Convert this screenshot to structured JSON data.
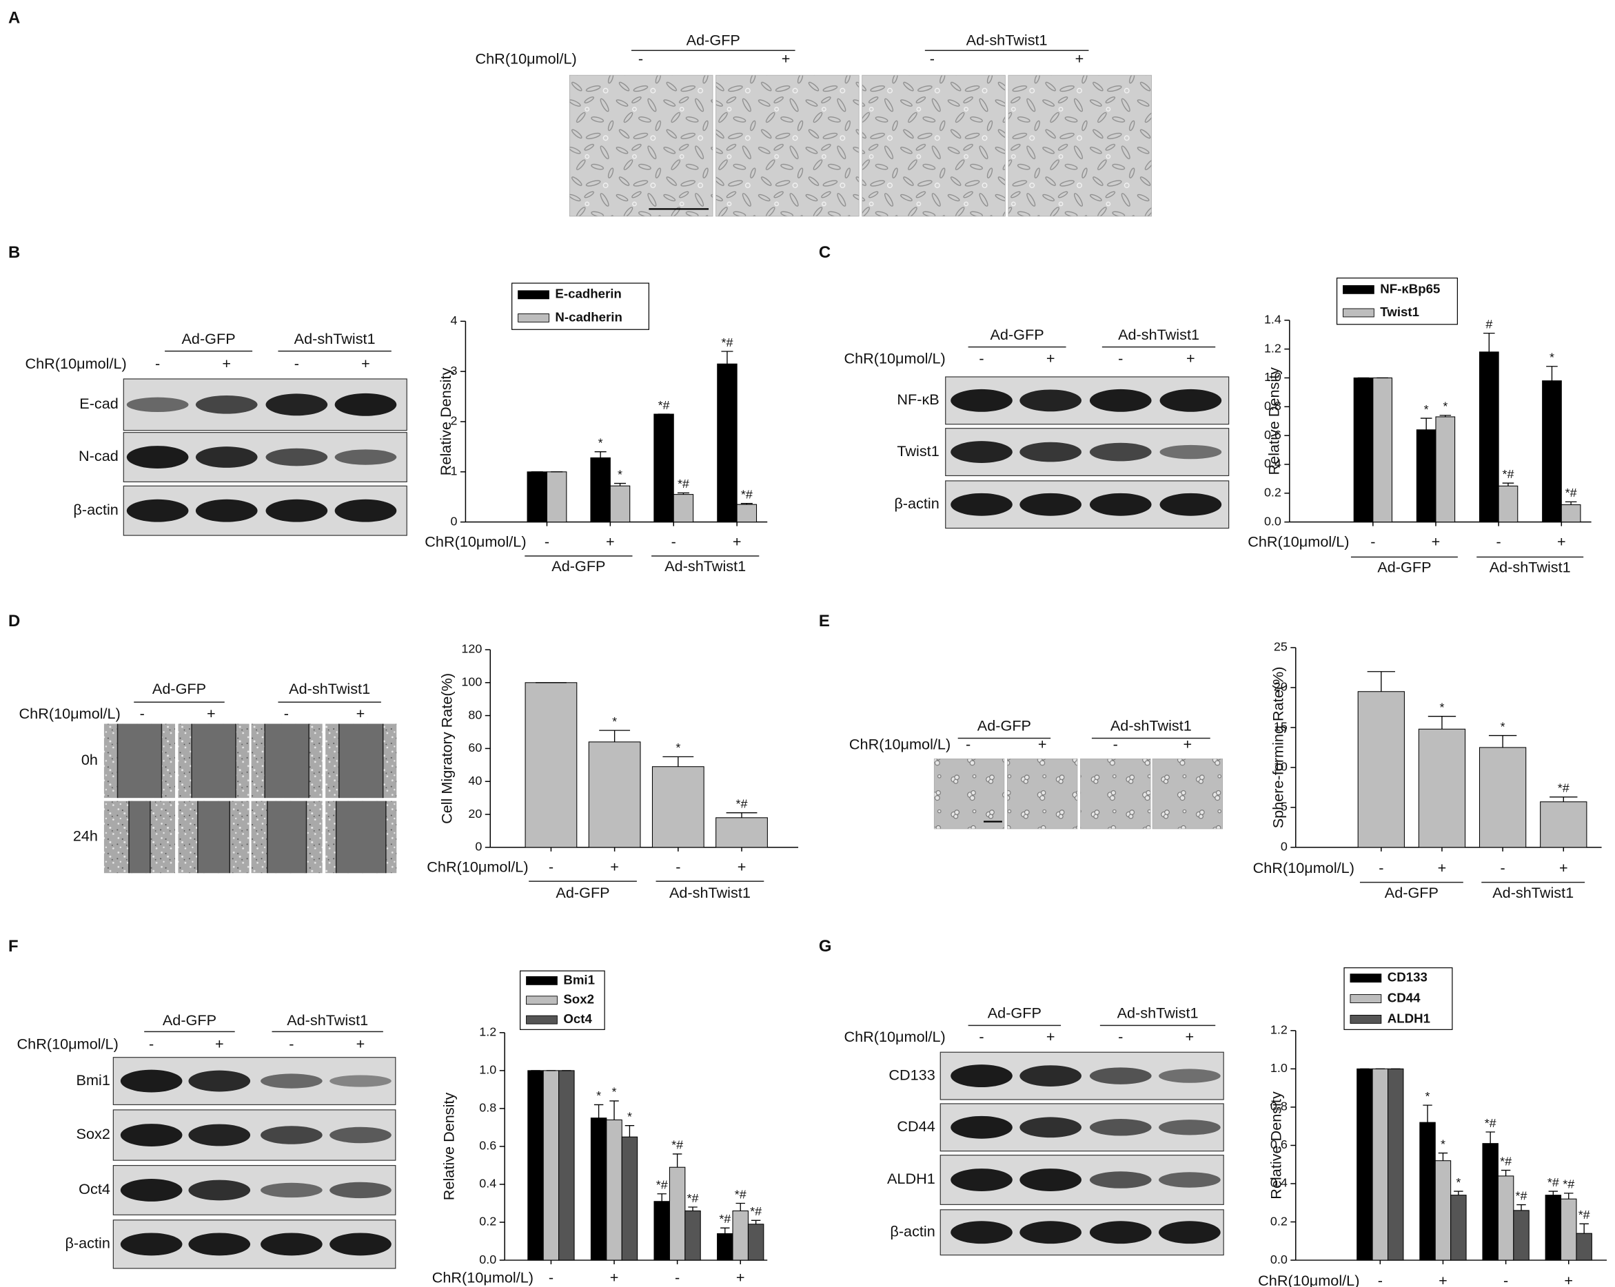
{
  "panels": [
    {
      "label": "A",
      "micrograph": {
        "groups": [
          "Ad-GFP",
          "Ad-shTwist1"
        ],
        "treatment": "ChR(10μmol/L)",
        "signs": [
          "-",
          "+",
          "-",
          "+"
        ]
      }
    },
    {
      "label": "B",
      "blot": {
        "groups": [
          "Ad-GFP",
          "Ad-shTwist1"
        ],
        "treatment": "ChR(10μmol/L)",
        "signs": [
          "-",
          "+",
          "-",
          "+"
        ],
        "rows": [
          "E-cad",
          "N-cad",
          "β-actin"
        ]
      }
    },
    {
      "label": "C",
      "blot": {
        "groups": [
          "Ad-GFP",
          "Ad-shTwist1"
        ],
        "treatment": "ChR(10μmol/L)",
        "signs": [
          "-",
          "+",
          "-",
          "+"
        ],
        "rows": [
          "NF-κB",
          "Twist1",
          "β-actin"
        ]
      }
    },
    {
      "label": "D",
      "scratch": {
        "groups": [
          "Ad-GFP",
          "Ad-shTwist1"
        ],
        "treatment": "ChR(10μmol/L)",
        "signs": [
          "-",
          "+",
          "-",
          "+"
        ],
        "rows": [
          "0h",
          "24h"
        ]
      }
    },
    {
      "label": "E",
      "micrograph": {
        "groups": [
          "Ad-GFP",
          "Ad-shTwist1"
        ],
        "treatment": "ChR(10μmol/L)",
        "signs": [
          "-",
          "+",
          "-",
          "+"
        ]
      }
    },
    {
      "label": "F",
      "blot": {
        "groups": [
          "Ad-GFP",
          "Ad-shTwist1"
        ],
        "treatment": "ChR(10μmol/L)",
        "signs": [
          "-",
          "+",
          "-",
          "+"
        ],
        "rows": [
          "Bmi1",
          "Sox2",
          "Oct4",
          "β-actin"
        ]
      }
    },
    {
      "label": "G",
      "blot": {
        "groups": [
          "Ad-GFP",
          "Ad-shTwist1"
        ],
        "treatment": "ChR(10μmol/L)",
        "signs": [
          "-",
          "+",
          "-",
          "+"
        ],
        "rows": [
          "CD133",
          "CD44",
          "ALDH1",
          "β-actin"
        ]
      }
    }
  ],
  "chart_data": [
    {
      "type": "bar",
      "ylabel": "Relative Density",
      "xlabel": "ChR(10μmol/L)",
      "categories": [
        "-",
        "+",
        "-",
        "+"
      ],
      "groups": [
        "Ad-GFP",
        "Ad-shTwist1"
      ],
      "ylim": [
        0,
        4
      ],
      "yticks": [
        0,
        1,
        2,
        3,
        4
      ],
      "legend": "upper left",
      "series": [
        {
          "name": "E-cadherin",
          "color": "#000000",
          "values": [
            1,
            1.28,
            2.15,
            3.15
          ],
          "errors": [
            0,
            0.12,
            0,
            0.25
          ],
          "annotations": [
            null,
            "*",
            "*#",
            "*#"
          ]
        },
        {
          "name": "N-cadherin",
          "color": "#bdbdbd",
          "values": [
            1,
            0.72,
            0.55,
            0.35
          ],
          "errors": [
            0,
            0.05,
            0.03,
            0.02
          ],
          "annotations": [
            null,
            "*",
            "*#",
            "*#"
          ]
        }
      ]
    },
    {
      "type": "bar",
      "ylabel": "Relative Density",
      "xlabel": "ChR(10μmol/L)",
      "categories": [
        "-",
        "+",
        "-",
        "+"
      ],
      "groups": [
        "Ad-GFP",
        "Ad-shTwist1"
      ],
      "ylim": [
        0,
        1.4
      ],
      "yticks": [
        {
          "value": 0,
          "label": "0.0"
        },
        0.2,
        0.4,
        0.6,
        0.8,
        {
          "value": 1,
          "label": "1.0"
        },
        1.2,
        1.4
      ],
      "legend": "upper left",
      "series": [
        {
          "name": "NF-κBp65",
          "color": "#000000",
          "values": [
            1,
            0.64,
            1.18,
            0.98
          ],
          "errors": [
            0,
            0.08,
            0.13,
            0.1
          ],
          "annotations": [
            null,
            "*",
            "#",
            "*"
          ]
        },
        {
          "name": "Twist1",
          "color": "#bdbdbd",
          "values": [
            1,
            0.73,
            0.25,
            0.12
          ],
          "errors": [
            0,
            0.01,
            0.02,
            0.02
          ],
          "annotations": [
            null,
            "*",
            "*#",
            "*#"
          ]
        }
      ]
    },
    {
      "type": "bar",
      "ylabel": "Cell Migratory Rate(%)",
      "xlabel": "ChR(10μmol/L)",
      "categories": [
        "-",
        "+",
        "-",
        "+"
      ],
      "groups": [
        "Ad-GFP",
        "Ad-shTwist1"
      ],
      "ylim": [
        0,
        120
      ],
      "yticks": [
        0,
        20,
        40,
        60,
        80,
        100,
        120
      ],
      "series": [
        {
          "color": "#bdbdbd",
          "values": [
            100,
            64,
            49,
            18
          ],
          "errors": [
            0,
            7,
            6,
            3
          ],
          "annotations": [
            null,
            "*",
            "*",
            "*#"
          ]
        }
      ]
    },
    {
      "type": "bar",
      "ylabel": "Sphere-forming Rate(%)",
      "xlabel": "ChR(10μmol/L)",
      "categories": [
        "-",
        "+",
        "-",
        "+"
      ],
      "groups": [
        "Ad-GFP",
        "Ad-shTwist1"
      ],
      "ylim": [
        0,
        25
      ],
      "yticks": [
        0,
        5,
        10,
        15,
        20,
        25
      ],
      "series": [
        {
          "color": "#bdbdbd",
          "values": [
            19.5,
            14.8,
            12.5,
            5.7
          ],
          "errors": [
            2.5,
            1.6,
            1.5,
            0.6
          ],
          "annotations": [
            null,
            "*",
            "*",
            "*#"
          ]
        }
      ]
    },
    {
      "type": "bar",
      "ylabel": "Relative Density",
      "xlabel": "ChR(10μmol/L)",
      "categories": [
        "-",
        "+",
        "-",
        "+"
      ],
      "groups": [
        "Ad-GFP",
        "Ad-shTwist1"
      ],
      "ylim": [
        0,
        1.2
      ],
      "yticks": [
        {
          "value": 0,
          "label": "0.0"
        },
        0.2,
        0.4,
        0.6,
        0.8,
        {
          "value": 1,
          "label": "1.0"
        },
        1.2
      ],
      "legend": "upper left",
      "series": [
        {
          "name": "Bmi1",
          "color": "#000000",
          "values": [
            1,
            0.75,
            0.31,
            0.14
          ],
          "errors": [
            0,
            0.07,
            0.04,
            0.03
          ],
          "annotations": [
            null,
            "*",
            "*#",
            "*#"
          ]
        },
        {
          "name": "Sox2",
          "color": "#bdbdbd",
          "values": [
            1,
            0.74,
            0.49,
            0.26
          ],
          "errors": [
            0,
            0.1,
            0.07,
            0.04
          ],
          "annotations": [
            null,
            "*",
            "*#",
            "*#"
          ]
        },
        {
          "name": "Oct4",
          "color": "#555555",
          "values": [
            1,
            0.65,
            0.26,
            0.19
          ],
          "errors": [
            0,
            0.06,
            0.02,
            0.02
          ],
          "annotations": [
            null,
            "*",
            "*#",
            "*#"
          ]
        }
      ]
    },
    {
      "type": "bar",
      "ylabel": "Relative Density",
      "xlabel": "ChR(10μmol/L)",
      "categories": [
        "-",
        "+",
        "-",
        "+"
      ],
      "groups": [
        "Ad-GFP",
        "Ad-shTwist1"
      ],
      "ylim": [
        0,
        1.2
      ],
      "yticks": [
        {
          "value": 0,
          "label": "0.0"
        },
        0.2,
        0.4,
        0.6,
        0.8,
        {
          "value": 1,
          "label": "1.0"
        },
        1.2
      ],
      "legend": "upper left",
      "series": [
        {
          "name": "CD133",
          "color": "#000000",
          "values": [
            1,
            0.72,
            0.61,
            0.34
          ],
          "errors": [
            0,
            0.09,
            0.06,
            0.02
          ],
          "annotations": [
            null,
            "*",
            "*#",
            "*#"
          ]
        },
        {
          "name": "CD44",
          "color": "#bdbdbd",
          "values": [
            1,
            0.52,
            0.44,
            0.32
          ],
          "errors": [
            0,
            0.04,
            0.03,
            0.03
          ],
          "annotations": [
            null,
            "*",
            "*#",
            "*#"
          ]
        },
        {
          "name": "ALDH1",
          "color": "#555555",
          "values": [
            1,
            0.34,
            0.26,
            0.14
          ],
          "errors": [
            0,
            0.02,
            0.03,
            0.05
          ],
          "annotations": [
            null,
            "*",
            "*#",
            "*#"
          ]
        }
      ]
    }
  ]
}
